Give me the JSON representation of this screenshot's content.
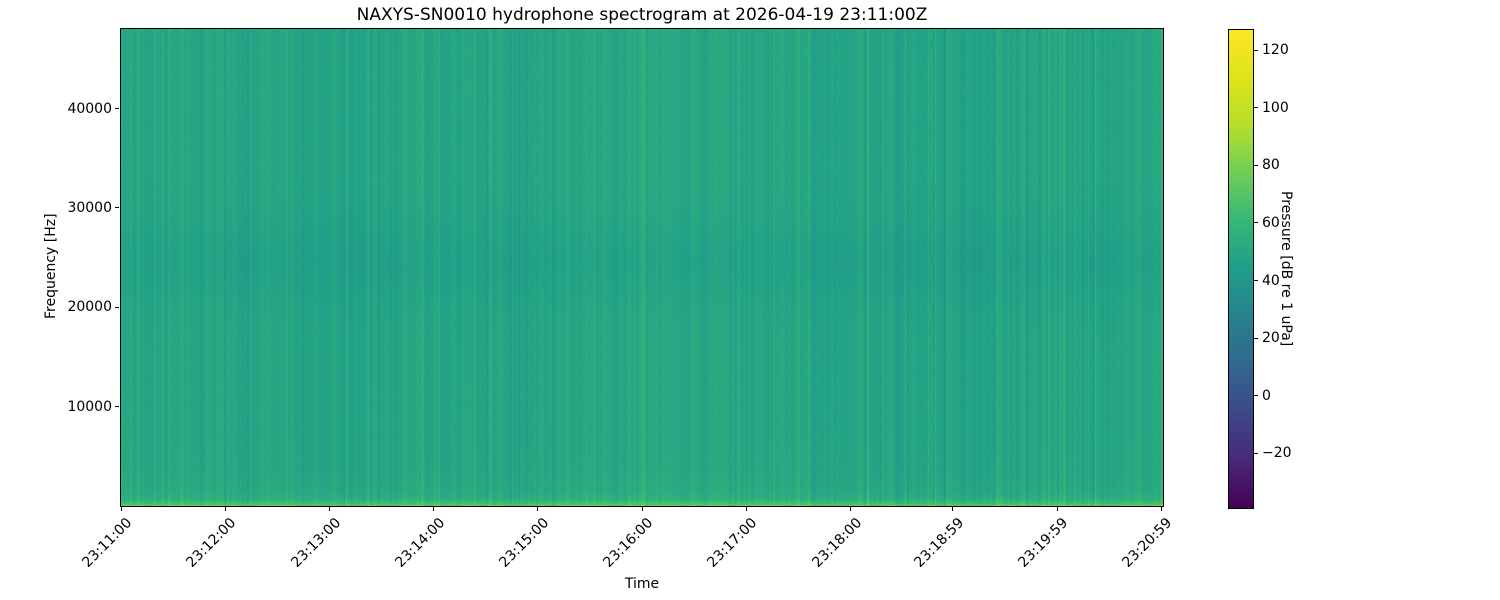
{
  "chart_data": {
    "type": "heatmap",
    "subtype": "spectrogram",
    "title": "NAXYS-SN0010 hydrophone spectrogram at 2026-04-19 23:11:00Z",
    "xlabel": "Time",
    "ylabel": "Frequency [Hz]",
    "grid": false,
    "x_axis": {
      "start_time": "23:11:00",
      "end_time": "23:21:00",
      "duration_seconds": 600,
      "tick_rotation_deg": 45,
      "ticks": [
        {
          "label": "23:11:00",
          "seconds": 0
        },
        {
          "label": "23:12:00",
          "seconds": 60
        },
        {
          "label": "23:13:00",
          "seconds": 120
        },
        {
          "label": "23:14:00",
          "seconds": 180
        },
        {
          "label": "23:15:00",
          "seconds": 240
        },
        {
          "label": "23:16:00",
          "seconds": 300
        },
        {
          "label": "23:17:00",
          "seconds": 360
        },
        {
          "label": "23:18:00",
          "seconds": 420
        },
        {
          "label": "23:18:59",
          "seconds": 479
        },
        {
          "label": "23:19:59",
          "seconds": 539
        },
        {
          "label": "23:20:59",
          "seconds": 599
        }
      ]
    },
    "y_axis": {
      "min": 0,
      "max": 48000,
      "ticks": [
        {
          "label": "10000",
          "value": 10000
        },
        {
          "label": "20000",
          "value": 20000
        },
        {
          "label": "30000",
          "value": 30000
        },
        {
          "label": "40000",
          "value": 40000
        }
      ]
    },
    "colorbar": {
      "label": "Pressure [dB re 1 uPa]",
      "vmin": -39,
      "vmax": 127,
      "ticks": [
        {
          "label": "120",
          "value": 120
        },
        {
          "label": "100",
          "value": 100
        },
        {
          "label": "80",
          "value": 80
        },
        {
          "label": "60",
          "value": 60
        },
        {
          "label": "40",
          "value": 40
        },
        {
          "label": "20",
          "value": 20
        },
        {
          "label": "0",
          "value": 0
        },
        {
          "label": "−20",
          "value": -20
        }
      ]
    },
    "colormap": {
      "name": "viridis",
      "stops": [
        [
          "0.0",
          "#440154"
        ],
        [
          "0.1",
          "#482878"
        ],
        [
          "0.2",
          "#3e4989"
        ],
        [
          "0.3",
          "#31688e"
        ],
        [
          "0.4",
          "#26828e"
        ],
        [
          "0.5",
          "#1f9e89"
        ],
        [
          "0.6",
          "#35b779"
        ],
        [
          "0.7",
          "#6ece58"
        ],
        [
          "0.8",
          "#b5de2b"
        ],
        [
          "0.9",
          "#dfe318"
        ],
        [
          "1.0",
          "#fde725"
        ]
      ]
    },
    "heatmap_appearance": {
      "description": "Mostly uniform teal broadband noise (~49 dB) with fine vertical striations per time column, a bright green strip at the lowest frequencies, and a subtle darker band near 21-28 kHz",
      "base_db": 49,
      "column_noise_db": 3.2,
      "pixel_noise_db": 1.1,
      "bright_column_rate": 0.055,
      "bright_column_boost_db": [
        5,
        12
      ],
      "dark_column_rate": 0.05,
      "dark_column_drop_db": [
        3,
        8
      ],
      "low_freq_boost_db": 22,
      "low_freq_scale_hz": 450,
      "low_freq_soft_boost_db": 3,
      "low_freq_soft_scale_hz": 2500,
      "mid_band_dip_db": -3.2,
      "mid_band_center_hz": 24500,
      "mid_band_sigma_hz": 2900,
      "seed": 42
    }
  }
}
